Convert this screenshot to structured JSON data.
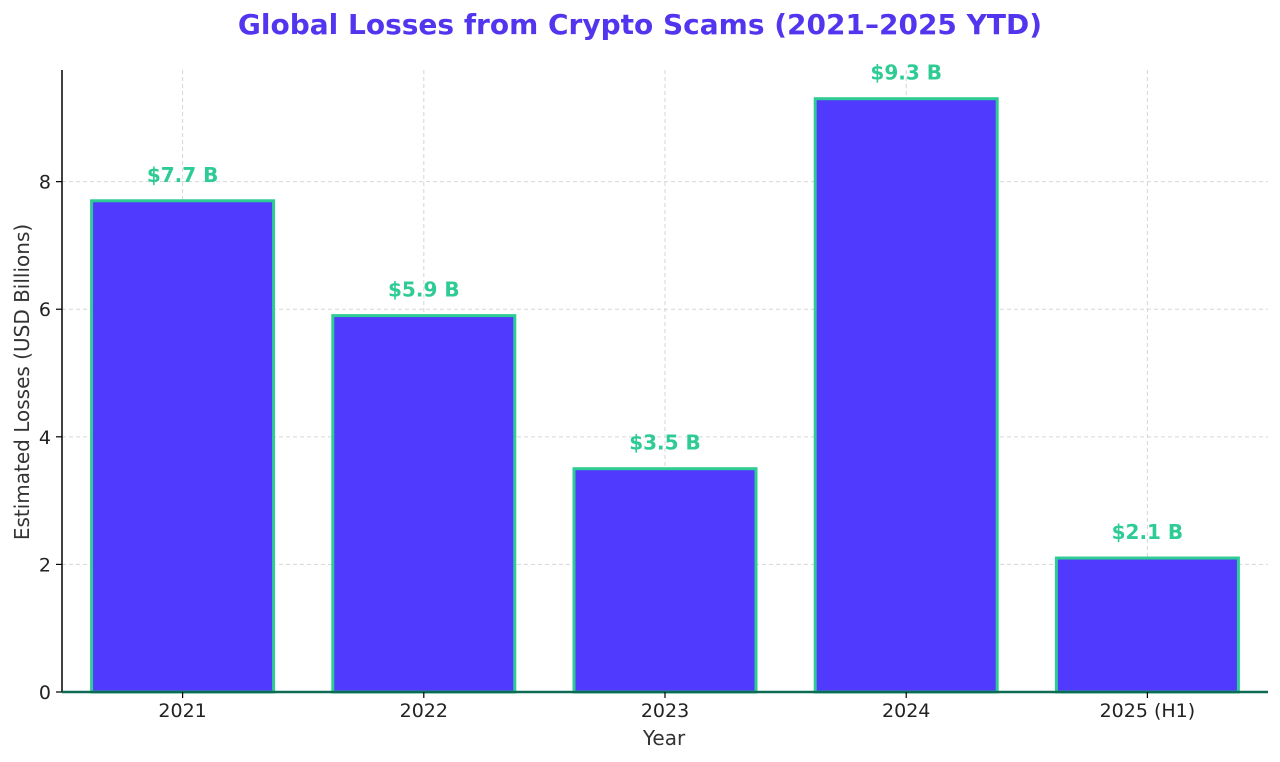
{
  "chart_data": {
    "type": "bar",
    "title": "Global Losses from Crypto Scams (2021–2025 YTD)",
    "xlabel": "Year",
    "ylabel": "Estimated Losses (USD Billions)",
    "categories": [
      "2021",
      "2022",
      "2023",
      "2024",
      "2025 (H1)"
    ],
    "values": [
      7.7,
      5.9,
      3.5,
      9.3,
      2.1
    ],
    "data_labels": [
      "$7.7 B",
      "$5.9 B",
      "$3.5 B",
      "$9.3 B",
      "$2.1 B"
    ],
    "ylim": [
      0,
      9.75
    ],
    "yticks": [
      0,
      2,
      4,
      6,
      8
    ],
    "grid": true,
    "colors": {
      "title": "#5236ef",
      "bar_fill": "#4f3afe",
      "bar_edge": "#2ecc94",
      "data_label": "#2ecc94",
      "grid": "#d6d6d6",
      "axis": "#000000",
      "baseline": "#0d6b55"
    }
  }
}
